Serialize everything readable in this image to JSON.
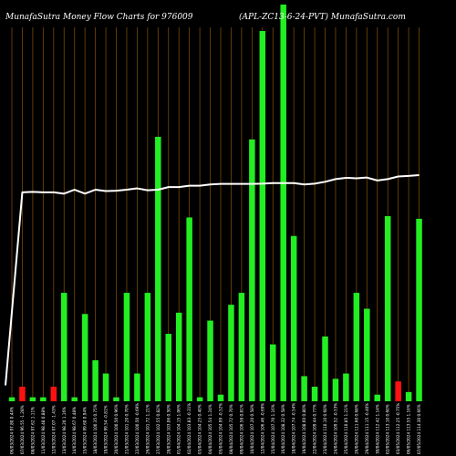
{
  "header": {
    "left": "MunafaSutra  Money Flow  Charts for 976009",
    "right": "(APL-ZC13-6-24-PVT) MunafaSutra.com"
  },
  "chart_data": {
    "type": "bar",
    "title": "MunafaSutra  Money Flow  Charts for 976009",
    "subtitle": "(APL-ZC13-6-24-PVT) MunafaSutra.com",
    "ylim": [
      0,
      100
    ],
    "bar_values": [
      1.5,
      5.5,
      1.5,
      1.5,
      5.5,
      41,
      1.5,
      33,
      15.5,
      10.5,
      1.5,
      41,
      10.5,
      41,
      100,
      25.5,
      33.5,
      69.5,
      1.5,
      30.5,
      2.5,
      36.5,
      41,
      99,
      140,
      21.5,
      150,
      62.5,
      9.5,
      5.5,
      24.5,
      8.5,
      10.5,
      41,
      35,
      2.5,
      70,
      7.5,
      3.5,
      69
    ],
    "bar_colors": [
      "green",
      "red",
      "green",
      "green",
      "red",
      "green",
      "green",
      "green",
      "green",
      "green",
      "green",
      "green",
      "green",
      "green",
      "green",
      "green",
      "green",
      "green",
      "green",
      "green",
      "green",
      "green",
      "green",
      "green",
      "green",
      "green",
      "green",
      "green",
      "green",
      "green",
      "green",
      "green",
      "green",
      "green",
      "green",
      "green",
      "green",
      "red",
      "green",
      "green"
    ],
    "line_values": [
      6,
      79,
      79.2,
      79,
      79,
      78.5,
      80,
      78.5,
      80,
      79.5,
      79.6,
      80,
      80.5,
      79.8,
      80,
      81,
      81,
      81.5,
      81.5,
      82,
      82.2,
      82.2,
      82.2,
      82.2,
      82.3,
      82.5,
      82.5,
      82.5,
      82,
      82.3,
      83,
      84,
      84.5,
      84.3,
      84.6,
      83.5,
      84,
      85,
      85.2,
      85.5
    ],
    "tick_labels": [
      "06/03/2024 97.80 0.44%",
      "07/03/2024 96.55 -1.28%",
      "08/03/2024 97.62 1.11%",
      "11/03/2024 98.48 0.88%",
      "12/03/2024 97.07 -1.43%",
      "13/03/2024 98.20 1.16%",
      "14/03/2024 98.67 0.48%",
      "15/03/2024 99.60 0.94%",
      "18/03/2024 100.35 0.75%",
      "19/03/2024 99.54 -0.81%",
      "20/03/2024 100.50 0.96%",
      "21/03/2024 101.20 0.70%",
      "22/03/2024 100.50 -0.69%",
      "26/03/2024 101.72 1.21%",
      "27/03/2024 102.55 0.82%",
      "28/03/2024 103.06 0.50%",
      "01/04/2024 104.15 1.06%",
      "02/04/2024 103.83 -0.31%",
      "03/04/2024 104.25 0.40%",
      "04/04/2024 105.54 1.24%",
      "05/04/2024 104.99 -0.52%",
      "08/04/2024 105.72 0.70%",
      "09/04/2024 106.58 0.81%",
      "10/04/2024 107.20 0.58%",
      "12/04/2024 106.46 -0.69%",
      "15/04/2024 107.70 1.16%",
      "16/04/2024 108.32 0.58%",
      "18/04/2024 107.74 -0.54%",
      "19/04/2024 108.60 0.80%",
      "22/04/2024 109.44 0.77%",
      "23/04/2024 110.10 0.60%",
      "24/04/2024 109.52 -0.53%",
      "25/04/2024 110.85 1.21%",
      "26/04/2024 111.60 0.68%",
      "29/04/2024 111.15 -0.40%",
      "30/04/2024 112.42 1.14%",
      "02/05/2024 113.10 0.60%",
      "03/05/2024 112.25 -0.75%",
      "06/05/2024 113.55 1.16%",
      "07/05/2024 114.30 0.66%"
    ]
  }
}
